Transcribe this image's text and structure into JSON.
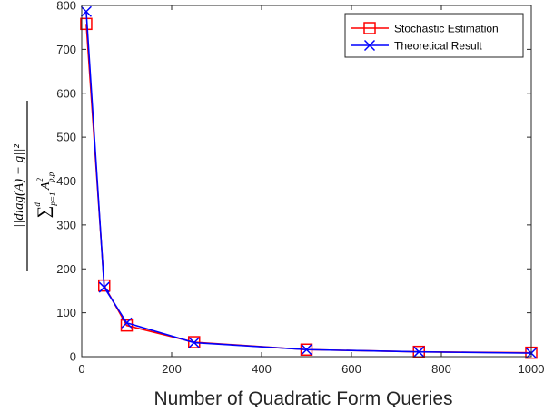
{
  "chart_data": {
    "type": "line",
    "title": "",
    "xlabel": "Number of Quadratic Form Queries",
    "ylabel": {
      "numerator": "||diag(A) − g||²",
      "denominator": "∑_{p=1}^{d} A²_{p,p}"
    },
    "xlim": [
      0,
      1000
    ],
    "ylim": [
      0,
      800
    ],
    "xticks": [
      0,
      200,
      400,
      600,
      800,
      1000
    ],
    "yticks": [
      0,
      100,
      200,
      300,
      400,
      500,
      600,
      700,
      800
    ],
    "grid": false,
    "legend_position": "top-right",
    "series": [
      {
        "name": "Stochastic Estimation",
        "color": "#ff0000",
        "marker": "square",
        "x": [
          10,
          50,
          100,
          250,
          500,
          750,
          1000
        ],
        "y": [
          758,
          162,
          71,
          33,
          16,
          11,
          9
        ]
      },
      {
        "name": "Theoretical Result",
        "color": "#0000ff",
        "marker": "x",
        "x": [
          10,
          50,
          100,
          250,
          500,
          750,
          1000
        ],
        "y": [
          786,
          158,
          77,
          32,
          16,
          11,
          8
        ]
      }
    ]
  }
}
